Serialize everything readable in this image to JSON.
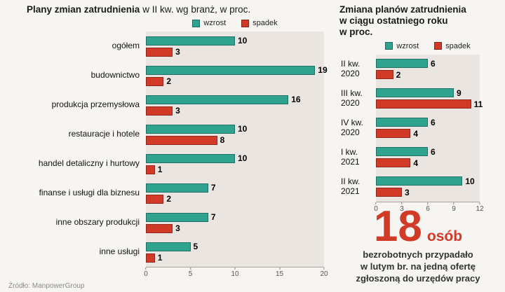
{
  "page": {
    "source": "Źródło: ManpowerGroup"
  },
  "colors": {
    "wzrost": "#2fa38f",
    "spadek": "#d23a28",
    "plot_background": "#ebe5e1",
    "stat_red": "#d23a28"
  },
  "chart_data": [
    {
      "type": "bar",
      "orientation": "horizontal",
      "title_bold": "Plany zmian zatrudnienia",
      "title_rest": "w II kw. wg branż, w proc.",
      "legend": [
        "wzrost",
        "spadek"
      ],
      "categories": [
        "ogółem",
        "budownictwo",
        "produkcja przemysłowa",
        "restauracje i hotele",
        "handel detaliczny i hurtowy",
        "finanse i usługi dla biznesu",
        "inne obszary produkcji",
        "inne usługi"
      ],
      "series": [
        {
          "name": "wzrost",
          "values": [
            10,
            19,
            16,
            10,
            10,
            7,
            7,
            5
          ]
        },
        {
          "name": "spadek",
          "values": [
            3,
            2,
            3,
            8,
            1,
            2,
            3,
            1
          ]
        }
      ],
      "xlim": [
        0,
        20
      ],
      "xticks": [
        0,
        5,
        10,
        15,
        20
      ],
      "grid": false,
      "legend_position": "top"
    },
    {
      "type": "bar",
      "orientation": "horizontal",
      "title": "Zmiana planów zatrudnienia\nw ciągu ostatniego roku\nw proc.",
      "legend": [
        "wzrost",
        "spadek"
      ],
      "categories": [
        "II kw.\n2020",
        "III kw.\n2020",
        "IV kw.\n2020",
        "I kw.\n2021",
        "II kw.\n2021"
      ],
      "series": [
        {
          "name": "wzrost",
          "values": [
            6,
            9,
            6,
            6,
            10
          ]
        },
        {
          "name": "spadek",
          "values": [
            2,
            11,
            4,
            4,
            3
          ]
        }
      ],
      "xlim": [
        0,
        12
      ],
      "xticks": [
        0,
        3,
        6,
        9,
        12
      ],
      "grid": false,
      "legend_position": "top"
    }
  ],
  "stat": {
    "number": "18",
    "unit": "osób",
    "lines": "bezrobotnych przypadało\nw lutym br. na jedną ofertę\nzgłoszoną do urzędów pracy"
  }
}
